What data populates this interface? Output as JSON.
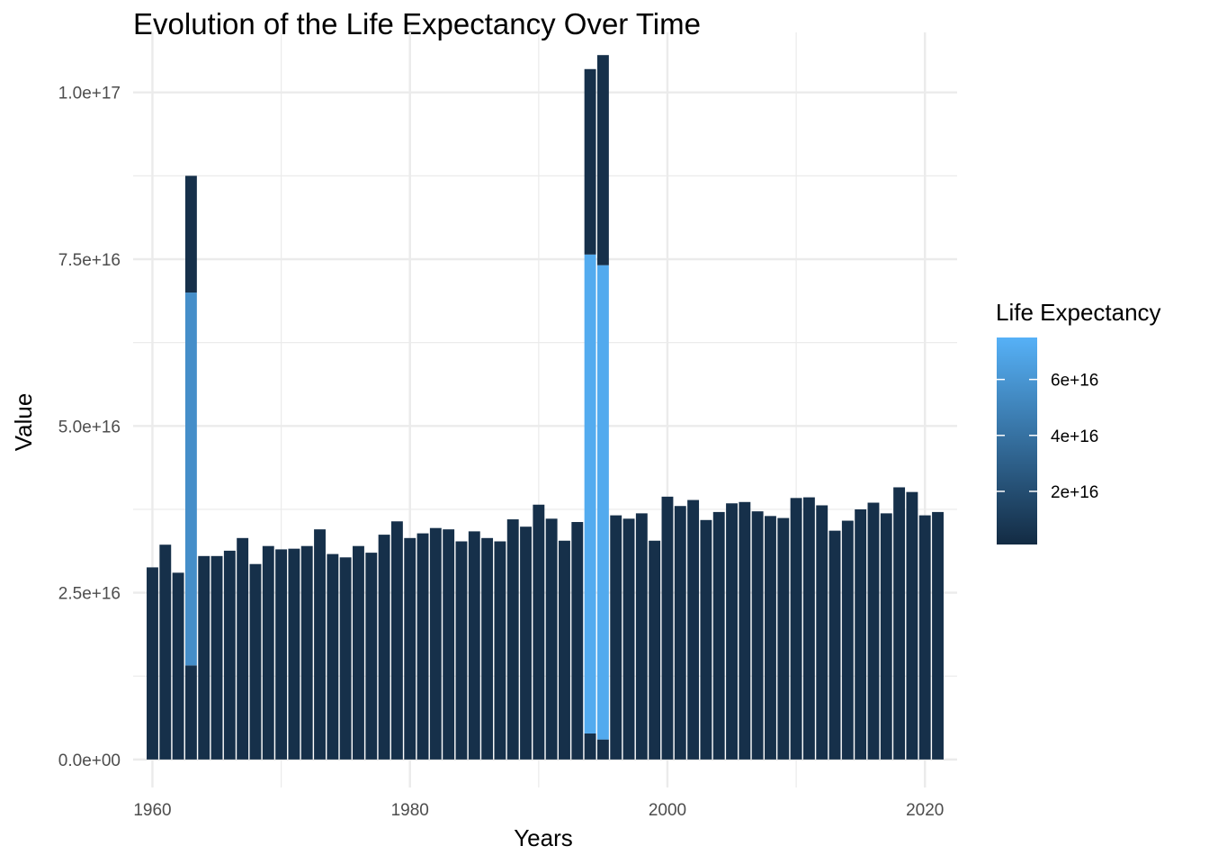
{
  "chart_data": {
    "type": "bar",
    "title": "Evolution of the Life Expectancy Over Time",
    "xlabel": "Years",
    "ylabel": "Value",
    "x_ticks": [
      1960,
      1980,
      2000,
      2020
    ],
    "y_ticks": [
      0,
      2.5e+16,
      5e+16,
      7.5e+16,
      1e+17
    ],
    "y_tick_labels": [
      "0.0e+00",
      "2.5e+16",
      "5.0e+16",
      "7.5e+16",
      "1.0e+17"
    ],
    "xlim": [
      1958.5,
      2022.5
    ],
    "ylim": [
      -4200000000000000.0,
      1.09e+17
    ],
    "grid": true,
    "bars": [
      {
        "x": 1960,
        "segments": [
          {
            "value": 2.88e+16,
            "fill": 4000000000000000.0
          }
        ]
      },
      {
        "x": 1961,
        "segments": [
          {
            "value": 3.22e+16,
            "fill": 4000000000000000.0
          }
        ]
      },
      {
        "x": 1962,
        "segments": [
          {
            "value": 2.8e+16,
            "fill": 4000000000000000.0
          }
        ]
      },
      {
        "x": 1963,
        "segments": [
          {
            "value": 1.41e+16,
            "fill": 4000000000000000.0
          },
          {
            "value": 5.59e+16,
            "fill": 5.59e+16
          },
          {
            "value": 1.75e+16,
            "fill": 4000000000000000.0
          }
        ]
      },
      {
        "x": 1964,
        "segments": [
          {
            "value": 3.05e+16,
            "fill": 4000000000000000.0
          }
        ]
      },
      {
        "x": 1965,
        "segments": [
          {
            "value": 3.05e+16,
            "fill": 4000000000000000.0
          }
        ]
      },
      {
        "x": 1966,
        "segments": [
          {
            "value": 3.13e+16,
            "fill": 4000000000000000.0
          }
        ]
      },
      {
        "x": 1967,
        "segments": [
          {
            "value": 3.32e+16,
            "fill": 4000000000000000.0
          }
        ]
      },
      {
        "x": 1968,
        "segments": [
          {
            "value": 2.93e+16,
            "fill": 4000000000000000.0
          }
        ]
      },
      {
        "x": 1969,
        "segments": [
          {
            "value": 3.2e+16,
            "fill": 4000000000000000.0
          }
        ]
      },
      {
        "x": 1970,
        "segments": [
          {
            "value": 3.15e+16,
            "fill": 4000000000000000.0
          }
        ]
      },
      {
        "x": 1971,
        "segments": [
          {
            "value": 3.16e+16,
            "fill": 4000000000000000.0
          }
        ]
      },
      {
        "x": 1972,
        "segments": [
          {
            "value": 3.2e+16,
            "fill": 4000000000000000.0
          }
        ]
      },
      {
        "x": 1973,
        "segments": [
          {
            "value": 3.45e+16,
            "fill": 4000000000000000.0
          }
        ]
      },
      {
        "x": 1974,
        "segments": [
          {
            "value": 3.08e+16,
            "fill": 4000000000000000.0
          }
        ]
      },
      {
        "x": 1975,
        "segments": [
          {
            "value": 3.03e+16,
            "fill": 4000000000000000.0
          }
        ]
      },
      {
        "x": 1976,
        "segments": [
          {
            "value": 3.2e+16,
            "fill": 4000000000000000.0
          }
        ]
      },
      {
        "x": 1977,
        "segments": [
          {
            "value": 3.1e+16,
            "fill": 4000000000000000.0
          }
        ]
      },
      {
        "x": 1978,
        "segments": [
          {
            "value": 3.37e+16,
            "fill": 4000000000000000.0
          }
        ]
      },
      {
        "x": 1979,
        "segments": [
          {
            "value": 3.57e+16,
            "fill": 4000000000000000.0
          }
        ]
      },
      {
        "x": 1980,
        "segments": [
          {
            "value": 3.32e+16,
            "fill": 4000000000000000.0
          }
        ]
      },
      {
        "x": 1981,
        "segments": [
          {
            "value": 3.39e+16,
            "fill": 4000000000000000.0
          }
        ]
      },
      {
        "x": 1982,
        "segments": [
          {
            "value": 3.47e+16,
            "fill": 4000000000000000.0
          }
        ]
      },
      {
        "x": 1983,
        "segments": [
          {
            "value": 3.45e+16,
            "fill": 4000000000000000.0
          }
        ]
      },
      {
        "x": 1984,
        "segments": [
          {
            "value": 3.27e+16,
            "fill": 4000000000000000.0
          }
        ]
      },
      {
        "x": 1985,
        "segments": [
          {
            "value": 3.42e+16,
            "fill": 4000000000000000.0
          }
        ]
      },
      {
        "x": 1986,
        "segments": [
          {
            "value": 3.32e+16,
            "fill": 4000000000000000.0
          }
        ]
      },
      {
        "x": 1987,
        "segments": [
          {
            "value": 3.27e+16,
            "fill": 4000000000000000.0
          }
        ]
      },
      {
        "x": 1988,
        "segments": [
          {
            "value": 3.6e+16,
            "fill": 4000000000000000.0
          }
        ]
      },
      {
        "x": 1989,
        "segments": [
          {
            "value": 3.49e+16,
            "fill": 4000000000000000.0
          }
        ]
      },
      {
        "x": 1990,
        "segments": [
          {
            "value": 3.82e+16,
            "fill": 4000000000000000.0
          }
        ]
      },
      {
        "x": 1991,
        "segments": [
          {
            "value": 3.61e+16,
            "fill": 4000000000000000.0
          }
        ]
      },
      {
        "x": 1992,
        "segments": [
          {
            "value": 3.28e+16,
            "fill": 4000000000000000.0
          }
        ]
      },
      {
        "x": 1993,
        "segments": [
          {
            "value": 3.56e+16,
            "fill": 4000000000000000.0
          }
        ]
      },
      {
        "x": 1994,
        "segments": [
          {
            "value": 3900000000000000.0,
            "fill": 4000000000000000.0
          },
          {
            "value": 7.18e+16,
            "fill": 7.18e+16
          },
          {
            "value": 2.78e+16,
            "fill": 4000000000000000.0
          }
        ]
      },
      {
        "x": 1995,
        "segments": [
          {
            "value": 3000000000000000.0,
            "fill": 4000000000000000.0
          },
          {
            "value": 7.11e+16,
            "fill": 7.11e+16
          },
          {
            "value": 3.15e+16,
            "fill": 4000000000000000.0
          }
        ]
      },
      {
        "x": 1996,
        "segments": [
          {
            "value": 3.66e+16,
            "fill": 4000000000000000.0
          }
        ]
      },
      {
        "x": 1997,
        "segments": [
          {
            "value": 3.61e+16,
            "fill": 4000000000000000.0
          }
        ]
      },
      {
        "x": 1998,
        "segments": [
          {
            "value": 3.69e+16,
            "fill": 4000000000000000.0
          }
        ]
      },
      {
        "x": 1999,
        "segments": [
          {
            "value": 3.28e+16,
            "fill": 4000000000000000.0
          }
        ]
      },
      {
        "x": 2000,
        "segments": [
          {
            "value": 3.94e+16,
            "fill": 4000000000000000.0
          }
        ]
      },
      {
        "x": 2001,
        "segments": [
          {
            "value": 3.8e+16,
            "fill": 4000000000000000.0
          }
        ]
      },
      {
        "x": 2002,
        "segments": [
          {
            "value": 3.89e+16,
            "fill": 4000000000000000.0
          }
        ]
      },
      {
        "x": 2003,
        "segments": [
          {
            "value": 3.59e+16,
            "fill": 4000000000000000.0
          }
        ]
      },
      {
        "x": 2004,
        "segments": [
          {
            "value": 3.71e+16,
            "fill": 4000000000000000.0
          }
        ]
      },
      {
        "x": 2005,
        "segments": [
          {
            "value": 3.84e+16,
            "fill": 4000000000000000.0
          }
        ]
      },
      {
        "x": 2006,
        "segments": [
          {
            "value": 3.86e+16,
            "fill": 4000000000000000.0
          }
        ]
      },
      {
        "x": 2007,
        "segments": [
          {
            "value": 3.72e+16,
            "fill": 4000000000000000.0
          }
        ]
      },
      {
        "x": 2008,
        "segments": [
          {
            "value": 3.65e+16,
            "fill": 4000000000000000.0
          }
        ]
      },
      {
        "x": 2009,
        "segments": [
          {
            "value": 3.62e+16,
            "fill": 4000000000000000.0
          }
        ]
      },
      {
        "x": 2010,
        "segments": [
          {
            "value": 3.92e+16,
            "fill": 4000000000000000.0
          }
        ]
      },
      {
        "x": 2011,
        "segments": [
          {
            "value": 3.93e+16,
            "fill": 4000000000000000.0
          }
        ]
      },
      {
        "x": 2012,
        "segments": [
          {
            "value": 3.81e+16,
            "fill": 4000000000000000.0
          }
        ]
      },
      {
        "x": 2013,
        "segments": [
          {
            "value": 3.43e+16,
            "fill": 4000000000000000.0
          }
        ]
      },
      {
        "x": 2014,
        "segments": [
          {
            "value": 3.58e+16,
            "fill": 4000000000000000.0
          }
        ]
      },
      {
        "x": 2015,
        "segments": [
          {
            "value": 3.75e+16,
            "fill": 4000000000000000.0
          }
        ]
      },
      {
        "x": 2016,
        "segments": [
          {
            "value": 3.85e+16,
            "fill": 4000000000000000.0
          }
        ]
      },
      {
        "x": 2017,
        "segments": [
          {
            "value": 3.69e+16,
            "fill": 4000000000000000.0
          }
        ]
      },
      {
        "x": 2018,
        "segments": [
          {
            "value": 4.08e+16,
            "fill": 4000000000000000.0
          }
        ]
      },
      {
        "x": 2019,
        "segments": [
          {
            "value": 4.01e+16,
            "fill": 4000000000000000.0
          }
        ]
      },
      {
        "x": 2020,
        "segments": [
          {
            "value": 3.66e+16,
            "fill": 4000000000000000.0
          }
        ]
      },
      {
        "x": 2021,
        "segments": [
          {
            "value": 3.71e+16,
            "fill": 4000000000000000.0
          }
        ]
      }
    ],
    "legend": {
      "title": "Life Expectancy",
      "placement": "right",
      "min": 1000000000000000.0,
      "max": 7.5e+16,
      "ticks": [
        2e+16,
        4e+16,
        6e+16
      ],
      "tick_labels": [
        "2e+16",
        "4e+16",
        "6e+16"
      ],
      "low_color": "#132B43",
      "high_color": "#56B1F7"
    },
    "colors": {
      "grid": "#ebebeb",
      "background": "#ffffff"
    }
  }
}
